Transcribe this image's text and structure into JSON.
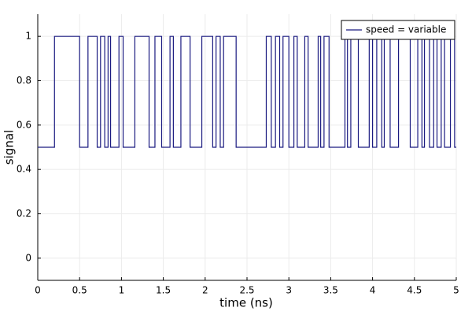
{
  "chart_data": {
    "type": "line",
    "xlabel": "time (ns)",
    "ylabel": "signal",
    "xlim": [
      0,
      5
    ],
    "ylim": [
      -0.1,
      1.1
    ],
    "xticks": [
      0,
      0.5,
      1,
      1.5,
      2,
      2.5,
      3,
      3.5,
      4,
      4.5,
      5
    ],
    "yticks": [
      0,
      0.2,
      0.4,
      0.6,
      0.8,
      1
    ],
    "grid": true,
    "legend": "upper right",
    "x": [
      0,
      0.2,
      0.2,
      0.5,
      0.5,
      0.6,
      0.6,
      0.71,
      0.71,
      0.75,
      0.75,
      0.8,
      0.8,
      0.84,
      0.84,
      0.87,
      0.87,
      0.97,
      0.97,
      1.02,
      1.02,
      1.16,
      1.16,
      1.33,
      1.33,
      1.4,
      1.4,
      1.48,
      1.48,
      1.58,
      1.58,
      1.62,
      1.62,
      1.71,
      1.71,
      1.82,
      1.82,
      1.96,
      1.96,
      2.09,
      2.09,
      2.13,
      2.13,
      2.18,
      2.18,
      2.22,
      2.22,
      2.37,
      2.37,
      2.73,
      2.73,
      2.79,
      2.79,
      2.84,
      2.84,
      2.89,
      2.89,
      2.93,
      2.93,
      3.0,
      3.0,
      3.06,
      3.06,
      3.1,
      3.1,
      3.19,
      3.19,
      3.23,
      3.23,
      3.35,
      3.35,
      3.38,
      3.38,
      3.42,
      3.42,
      3.48,
      3.48,
      3.67,
      3.67,
      3.7,
      3.7,
      3.74,
      3.74,
      3.83,
      3.83,
      3.96,
      3.96,
      4.0,
      4.0,
      4.05,
      4.05,
      4.11,
      4.11,
      4.14,
      4.14,
      4.21,
      4.21,
      4.31,
      4.31,
      4.45,
      4.45,
      4.54,
      4.54,
      4.59,
      4.59,
      4.62,
      4.62,
      4.68,
      4.68,
      4.73,
      4.73,
      4.77,
      4.77,
      4.82,
      4.82,
      4.86,
      4.86,
      4.93,
      4.93,
      4.98,
      4.98,
      5
    ],
    "series": [
      {
        "name": "speed = variable",
        "color": "#1a1a80",
        "values": [
          0.5,
          0.5,
          1,
          1,
          0.5,
          0.5,
          1,
          1,
          0.5,
          0.5,
          1,
          1,
          0.5,
          0.5,
          1,
          1,
          0.5,
          0.5,
          1,
          1,
          0.5,
          0.5,
          1,
          1,
          0.5,
          0.5,
          1,
          1,
          0.5,
          0.5,
          1,
          1,
          0.5,
          0.5,
          1,
          1,
          0.5,
          0.5,
          1,
          1,
          0.5,
          0.5,
          1,
          1,
          0.5,
          0.5,
          1,
          1,
          0.5,
          0.5,
          1,
          1,
          0.5,
          0.5,
          1,
          1,
          0.5,
          0.5,
          1,
          1,
          0.5,
          0.5,
          1,
          1,
          0.5,
          0.5,
          1,
          1,
          0.5,
          0.5,
          1,
          1,
          0.5,
          0.5,
          1,
          1,
          0.5,
          0.5,
          1,
          1,
          0.5,
          0.5,
          1,
          1,
          0.5,
          0.5,
          1,
          1,
          0.5,
          0.5,
          1,
          1,
          0.5,
          0.5,
          1,
          1,
          0.5,
          0.5,
          1,
          1,
          0.5,
          0.5,
          1,
          1,
          0.5,
          0.5,
          1,
          1,
          0.5,
          0.5,
          1,
          1,
          0.5,
          0.5,
          1,
          1,
          0.5,
          0.5,
          1,
          1,
          0.5,
          0.5
        ]
      }
    ]
  }
}
